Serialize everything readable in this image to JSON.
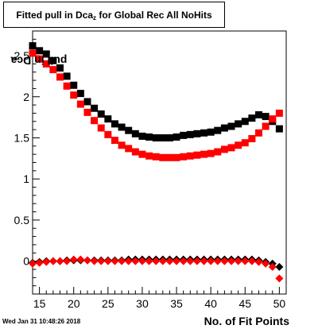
{
  "title": {
    "main": "Fitted pull in Dca",
    "sub": "z",
    "tail": " for Global Rec All NoHits"
  },
  "footer": {
    "timestamp": "Wed Jan 31 10:48:26 2018"
  },
  "chart_data": {
    "type": "scatter",
    "xlabel": "No. of Fit Points",
    "ylabel": {
      "main": "pull in Dca",
      "sub": "z"
    },
    "xlim": [
      14,
      51
    ],
    "ylim": [
      -0.4,
      2.8
    ],
    "xticks": [
      15,
      20,
      25,
      30,
      35,
      40,
      45,
      50
    ],
    "yticks": [
      0,
      0.5,
      1,
      1.5,
      2,
      2.5
    ],
    "ytick_labels": [
      "0",
      "0.5",
      "1",
      "1.5",
      "2",
      "2.5"
    ],
    "grid": false,
    "colors": {
      "black": "#000000",
      "red": "#ff0000"
    },
    "x": [
      14,
      15,
      16,
      17,
      18,
      19,
      20,
      21,
      22,
      23,
      24,
      25,
      26,
      27,
      28,
      29,
      30,
      31,
      32,
      33,
      34,
      35,
      36,
      37,
      38,
      39,
      40,
      41,
      42,
      43,
      44,
      45,
      46,
      47,
      48,
      49,
      50
    ],
    "series": [
      {
        "color": "black",
        "marker": "square",
        "values": [
          2.62,
          2.56,
          2.52,
          2.44,
          2.35,
          2.25,
          2.14,
          2.04,
          1.94,
          1.86,
          1.79,
          1.73,
          1.67,
          1.63,
          1.59,
          1.55,
          1.52,
          1.51,
          1.5,
          1.5,
          1.5,
          1.51,
          1.53,
          1.54,
          1.55,
          1.56,
          1.57,
          1.59,
          1.62,
          1.64,
          1.67,
          1.7,
          1.74,
          1.78,
          1.76,
          1.7,
          1.61
        ]
      },
      {
        "color": "red",
        "marker": "square",
        "values": [
          2.53,
          2.46,
          2.4,
          2.33,
          2.24,
          2.13,
          2.02,
          1.91,
          1.81,
          1.71,
          1.62,
          1.54,
          1.47,
          1.41,
          1.37,
          1.33,
          1.3,
          1.28,
          1.27,
          1.26,
          1.26,
          1.26,
          1.27,
          1.28,
          1.29,
          1.3,
          1.31,
          1.33,
          1.36,
          1.38,
          1.41,
          1.44,
          1.49,
          1.56,
          1.64,
          1.73,
          1.8
        ]
      },
      {
        "color": "black",
        "marker": "diamond",
        "values": [
          -0.02,
          -0.01,
          0.0,
          0.0,
          0.0,
          0.01,
          0.01,
          0.01,
          0.01,
          0.01,
          0.01,
          0.01,
          0.01,
          0.01,
          0.02,
          0.02,
          0.02,
          0.02,
          0.02,
          0.02,
          0.02,
          0.02,
          0.02,
          0.02,
          0.02,
          0.02,
          0.02,
          0.02,
          0.02,
          0.02,
          0.02,
          0.02,
          0.02,
          0.01,
          -0.01,
          -0.03,
          -0.07
        ]
      },
      {
        "color": "red",
        "marker": "diamond",
        "values": [
          -0.03,
          -0.02,
          -0.01,
          0.0,
          0.0,
          0.0,
          0.02,
          0.02,
          0.01,
          0.0,
          0.0,
          0.0,
          0.0,
          0.0,
          0.0,
          0.0,
          0.0,
          0.0,
          0.0,
          0.0,
          0.0,
          0.0,
          0.0,
          0.0,
          0.0,
          0.0,
          0.0,
          0.0,
          0.0,
          0.0,
          0.0,
          0.0,
          0.0,
          -0.01,
          -0.03,
          -0.07,
          -0.21
        ]
      }
    ]
  }
}
